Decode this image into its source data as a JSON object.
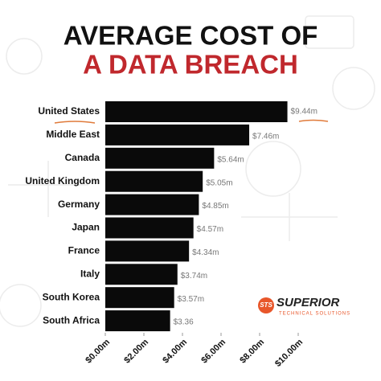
{
  "chart_data": {
    "type": "barh",
    "title_lines": [
      {
        "text": "AVERAGE COST OF",
        "color": "#111111"
      },
      {
        "text": "A DATA BREACH",
        "color": "#c0282d"
      }
    ],
    "categories": [
      "United States",
      "Middle East",
      "Canada",
      "United Kingdom",
      "Germany",
      "Japan",
      "France",
      "Italy",
      "South Korea",
      "South Africa"
    ],
    "values": [
      9.44,
      7.46,
      5.64,
      5.05,
      4.85,
      4.57,
      4.34,
      3.74,
      3.57,
      3.36
    ],
    "value_labels": [
      "$9.44m",
      "$7.46m",
      "$5.64m",
      "$5.05m",
      "$4.85m",
      "$4.57m",
      "$4.34m",
      "$3.74m",
      "$3.57m",
      "$3.36"
    ],
    "color": "#0a0a0a",
    "xlim": [
      0,
      10
    ],
    "xticks": [
      {
        "value": 0,
        "label": "$0.00m"
      },
      {
        "value": 2,
        "label": "$2.00m"
      },
      {
        "value": 4,
        "label": "$4.00m"
      },
      {
        "value": 6,
        "label": "$6.00m"
      },
      {
        "value": 8,
        "label": "$8.00m"
      },
      {
        "value": 10,
        "label": "$10.00m"
      }
    ],
    "logo": {
      "mark": "STS",
      "name": "SUPERIOR",
      "tagline": "TECHNICAL SOLUTIONS"
    }
  }
}
